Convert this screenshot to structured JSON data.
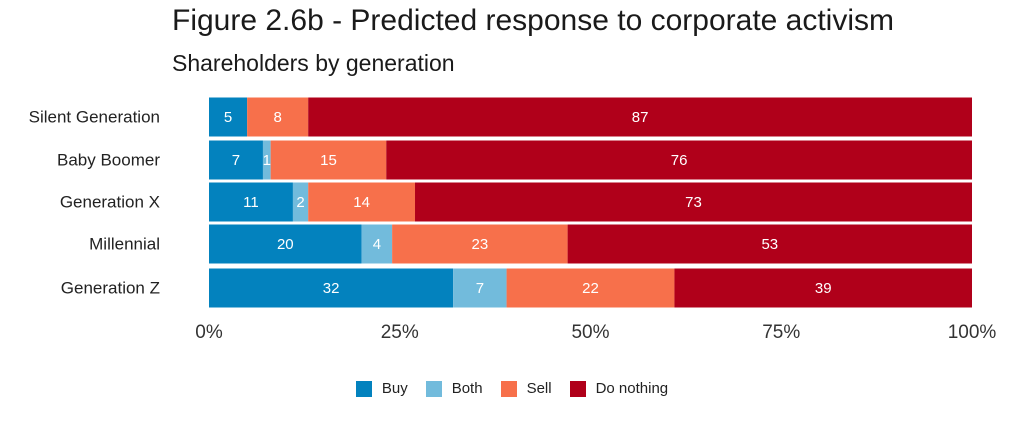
{
  "chart_data": {
    "type": "bar",
    "orientation": "horizontal",
    "stacked": true,
    "title": "Figure 2.6b - Predicted response to corporate activism",
    "subtitle": "Shareholders by generation",
    "categories": [
      "Silent Generation",
      "Baby Boomer",
      "Generation X",
      "Millennial",
      "Generation Z"
    ],
    "series": [
      {
        "name": "Buy",
        "color": "#0382BE",
        "values": [
          5,
          7,
          11,
          20,
          32
        ]
      },
      {
        "name": "Both",
        "color": "#72BBDC",
        "values": [
          0,
          1,
          2,
          4,
          7
        ]
      },
      {
        "name": "Sell",
        "color": "#F7704B",
        "values": [
          8,
          15,
          14,
          23,
          22
        ]
      },
      {
        "name": "Do nothing",
        "color": "#B0001A",
        "values": [
          87,
          76,
          73,
          53,
          39
        ]
      }
    ],
    "data_labels": [
      [
        "5",
        "",
        "8",
        "87"
      ],
      [
        "7",
        "1",
        "15",
        "76"
      ],
      [
        "11",
        "2",
        "14",
        "73"
      ],
      [
        "20",
        "4",
        "23",
        "53"
      ],
      [
        "32",
        "7",
        "22",
        "39"
      ]
    ],
    "xlim": [
      0,
      100
    ],
    "x_ticks": [
      0,
      25,
      50,
      75,
      100
    ],
    "x_tick_labels": [
      "0%",
      "25%",
      "50%",
      "75%",
      "100%"
    ],
    "xlabel": "",
    "ylabel": "",
    "grid": false,
    "legend_position": "bottom"
  }
}
